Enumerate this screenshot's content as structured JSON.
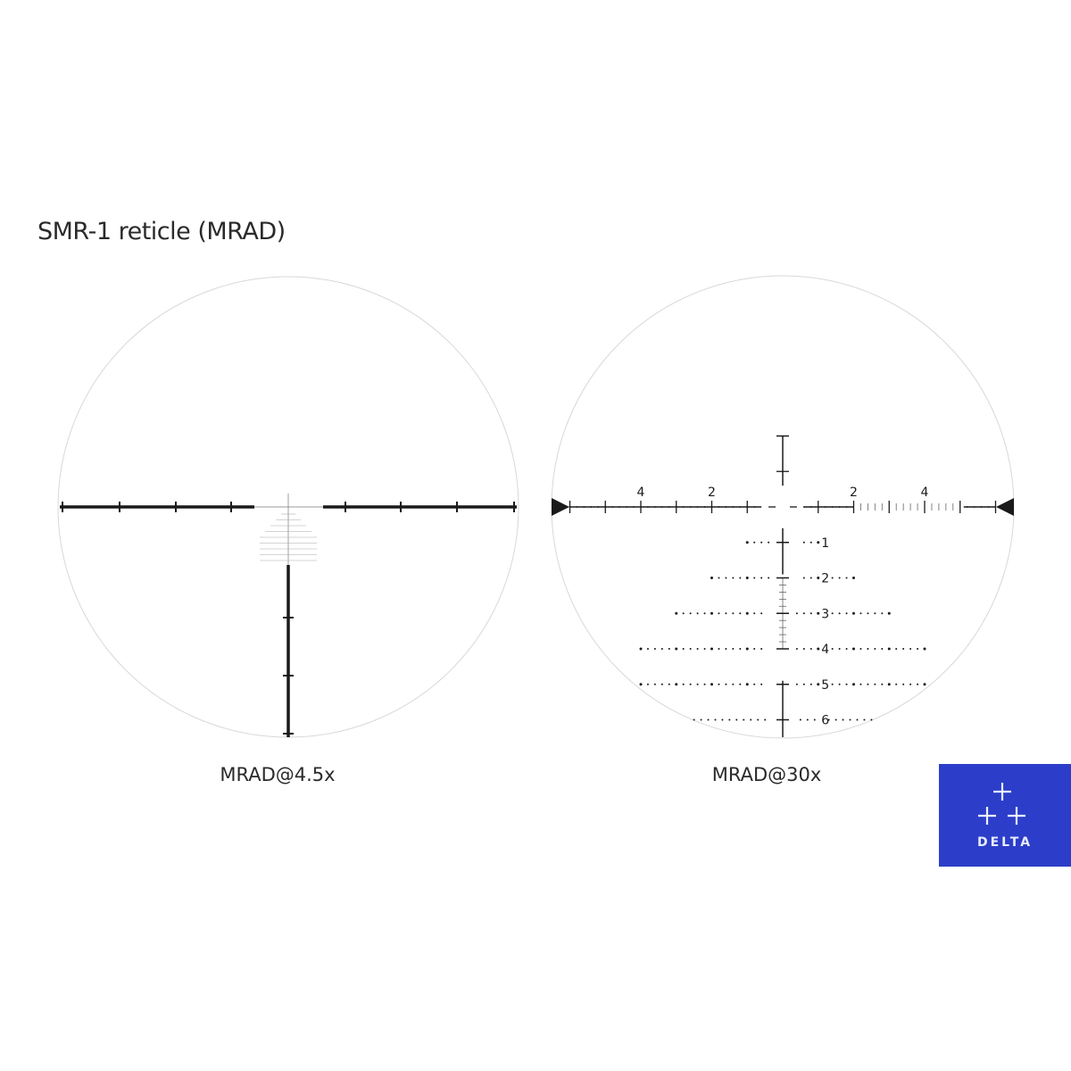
{
  "title": "SMR-1 reticle (MRAD)",
  "reticles": [
    {
      "caption": "MRAD@4.5x"
    },
    {
      "caption": "MRAD@30x",
      "horizontal_labels": [
        "4",
        "2",
        "2",
        "4"
      ],
      "holdover_labels": [
        "1",
        "2",
        "3",
        "4",
        "5",
        "6"
      ]
    }
  ],
  "logo": {
    "text": "DELTA",
    "color": "#2c3ec9"
  },
  "colors": {
    "reticle": "#1a1a1a",
    "circle": "#d8d8d8"
  }
}
